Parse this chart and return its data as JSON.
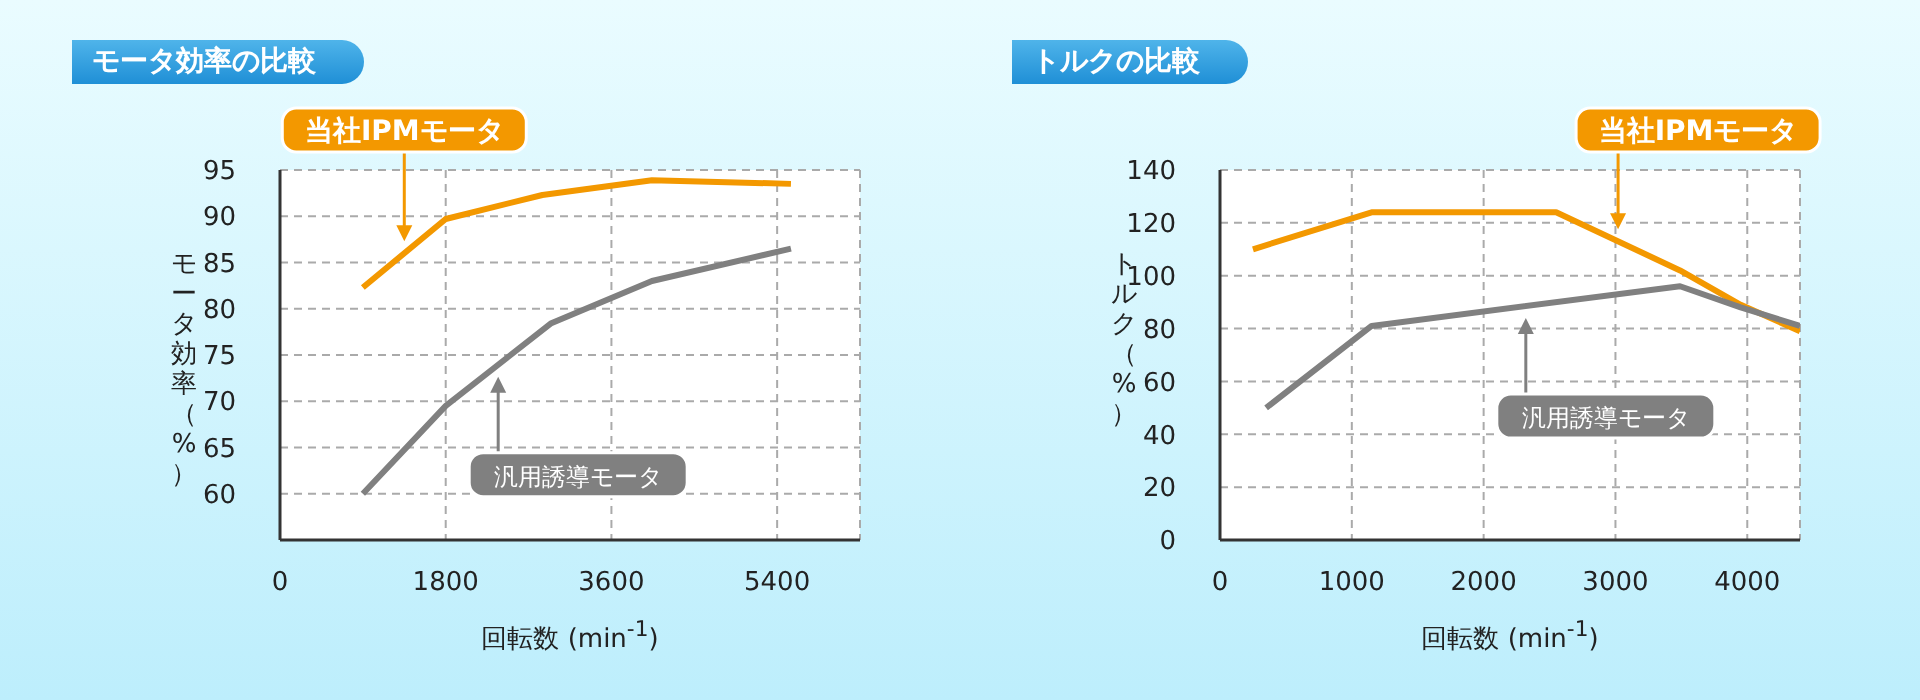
{
  "chart_data": [
    {
      "type": "line",
      "title": "モータ効率の比較",
      "xlabel": "回転数 (min$^{-1}$)",
      "ylabel": "モータ効率（%）",
      "xlim": [
        0,
        6300
      ],
      "xticks": [
        0,
        1800,
        3600,
        5400
      ],
      "ylim": [
        55,
        95
      ],
      "yticks": [
        60,
        65,
        70,
        75,
        80,
        85,
        90,
        95
      ],
      "grid": true,
      "legend": false,
      "series": [
        {
          "name": "当社IPMモータ",
          "color": "#f39800",
          "x": [
            900,
            1800,
            2850,
            4040,
            5550
          ],
          "values": [
            82.3,
            89.7,
            92.3,
            93.9,
            93.5
          ]
        },
        {
          "name": "汎用誘導モータ",
          "color": "#808080",
          "x": [
            900,
            1800,
            2940,
            4040,
            5550
          ],
          "values": [
            60,
            69.5,
            78.4,
            83,
            86.5
          ]
        }
      ]
    },
    {
      "type": "line",
      "title": "トルクの比較",
      "xlabel": "回転数 (min$^{-1}$)",
      "ylabel": "トルク（%）",
      "xlim": [
        0,
        4400
      ],
      "xticks": [
        0,
        1000,
        2000,
        3000,
        4000
      ],
      "ylim": [
        0,
        140
      ],
      "yticks": [
        0,
        20,
        40,
        60,
        80,
        100,
        120,
        140
      ],
      "grid": true,
      "legend": false,
      "series": [
        {
          "name": "当社IPMモータ",
          "color": "#f39800",
          "x": [
            250,
            1150,
            2550,
            3490,
            3950,
            4400
          ],
          "values": [
            110,
            124,
            124,
            102,
            89,
            79
          ]
        },
        {
          "name": "汎用誘導モータ",
          "color": "#808080",
          "x": [
            350,
            1150,
            3490,
            3950,
            4400
          ],
          "values": [
            50,
            81,
            96,
            88,
            81
          ]
        }
      ]
    }
  ]
}
